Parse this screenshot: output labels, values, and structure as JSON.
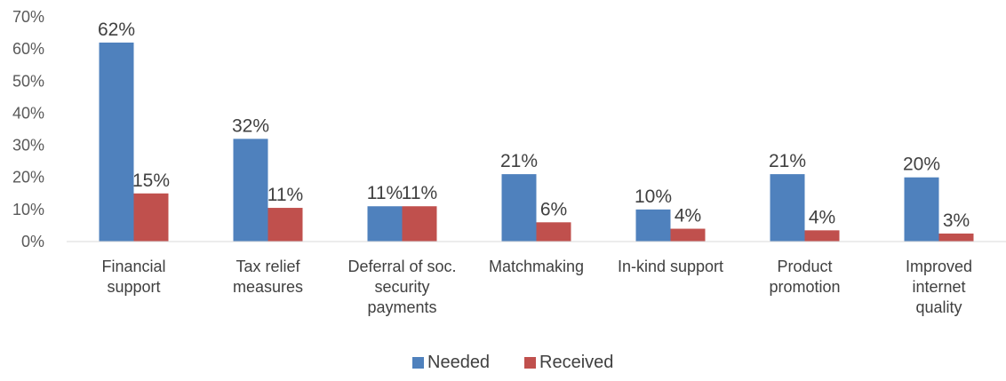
{
  "chart_data": {
    "type": "bar",
    "categories": [
      [
        "Financial",
        "support"
      ],
      [
        "Tax relief",
        "measures"
      ],
      [
        "Deferral of soc.",
        "security",
        "payments"
      ],
      [
        "Matchmaking"
      ],
      [
        "In-kind support"
      ],
      [
        "Product",
        "promotion"
      ],
      [
        "Improved",
        "internet",
        "quality"
      ]
    ],
    "series": [
      {
        "name": "Needed",
        "color": "#4f81bd",
        "values": [
          62,
          32,
          11,
          21,
          10,
          21,
          20
        ],
        "labels": [
          "62%",
          "32%",
          "11%",
          "21%",
          "10%",
          "21%",
          "20%"
        ]
      },
      {
        "name": "Received",
        "color": "#c0504d",
        "values": [
          15,
          10.5,
          11,
          6,
          4,
          3.5,
          2.5
        ],
        "labels": [
          "15%",
          "11%",
          "11%",
          "6%",
          "4%",
          "4%",
          "3%"
        ]
      }
    ],
    "ylim": [
      0,
      70
    ],
    "yticks": [
      0,
      10,
      20,
      30,
      40,
      50,
      60,
      70
    ],
    "ytick_labels": [
      "0%",
      "10%",
      "20%",
      "30%",
      "40%",
      "50%",
      "60%",
      "70%"
    ],
    "title": "",
    "xlabel": "",
    "ylabel": "",
    "grid": false,
    "legend_position": "bottom"
  }
}
